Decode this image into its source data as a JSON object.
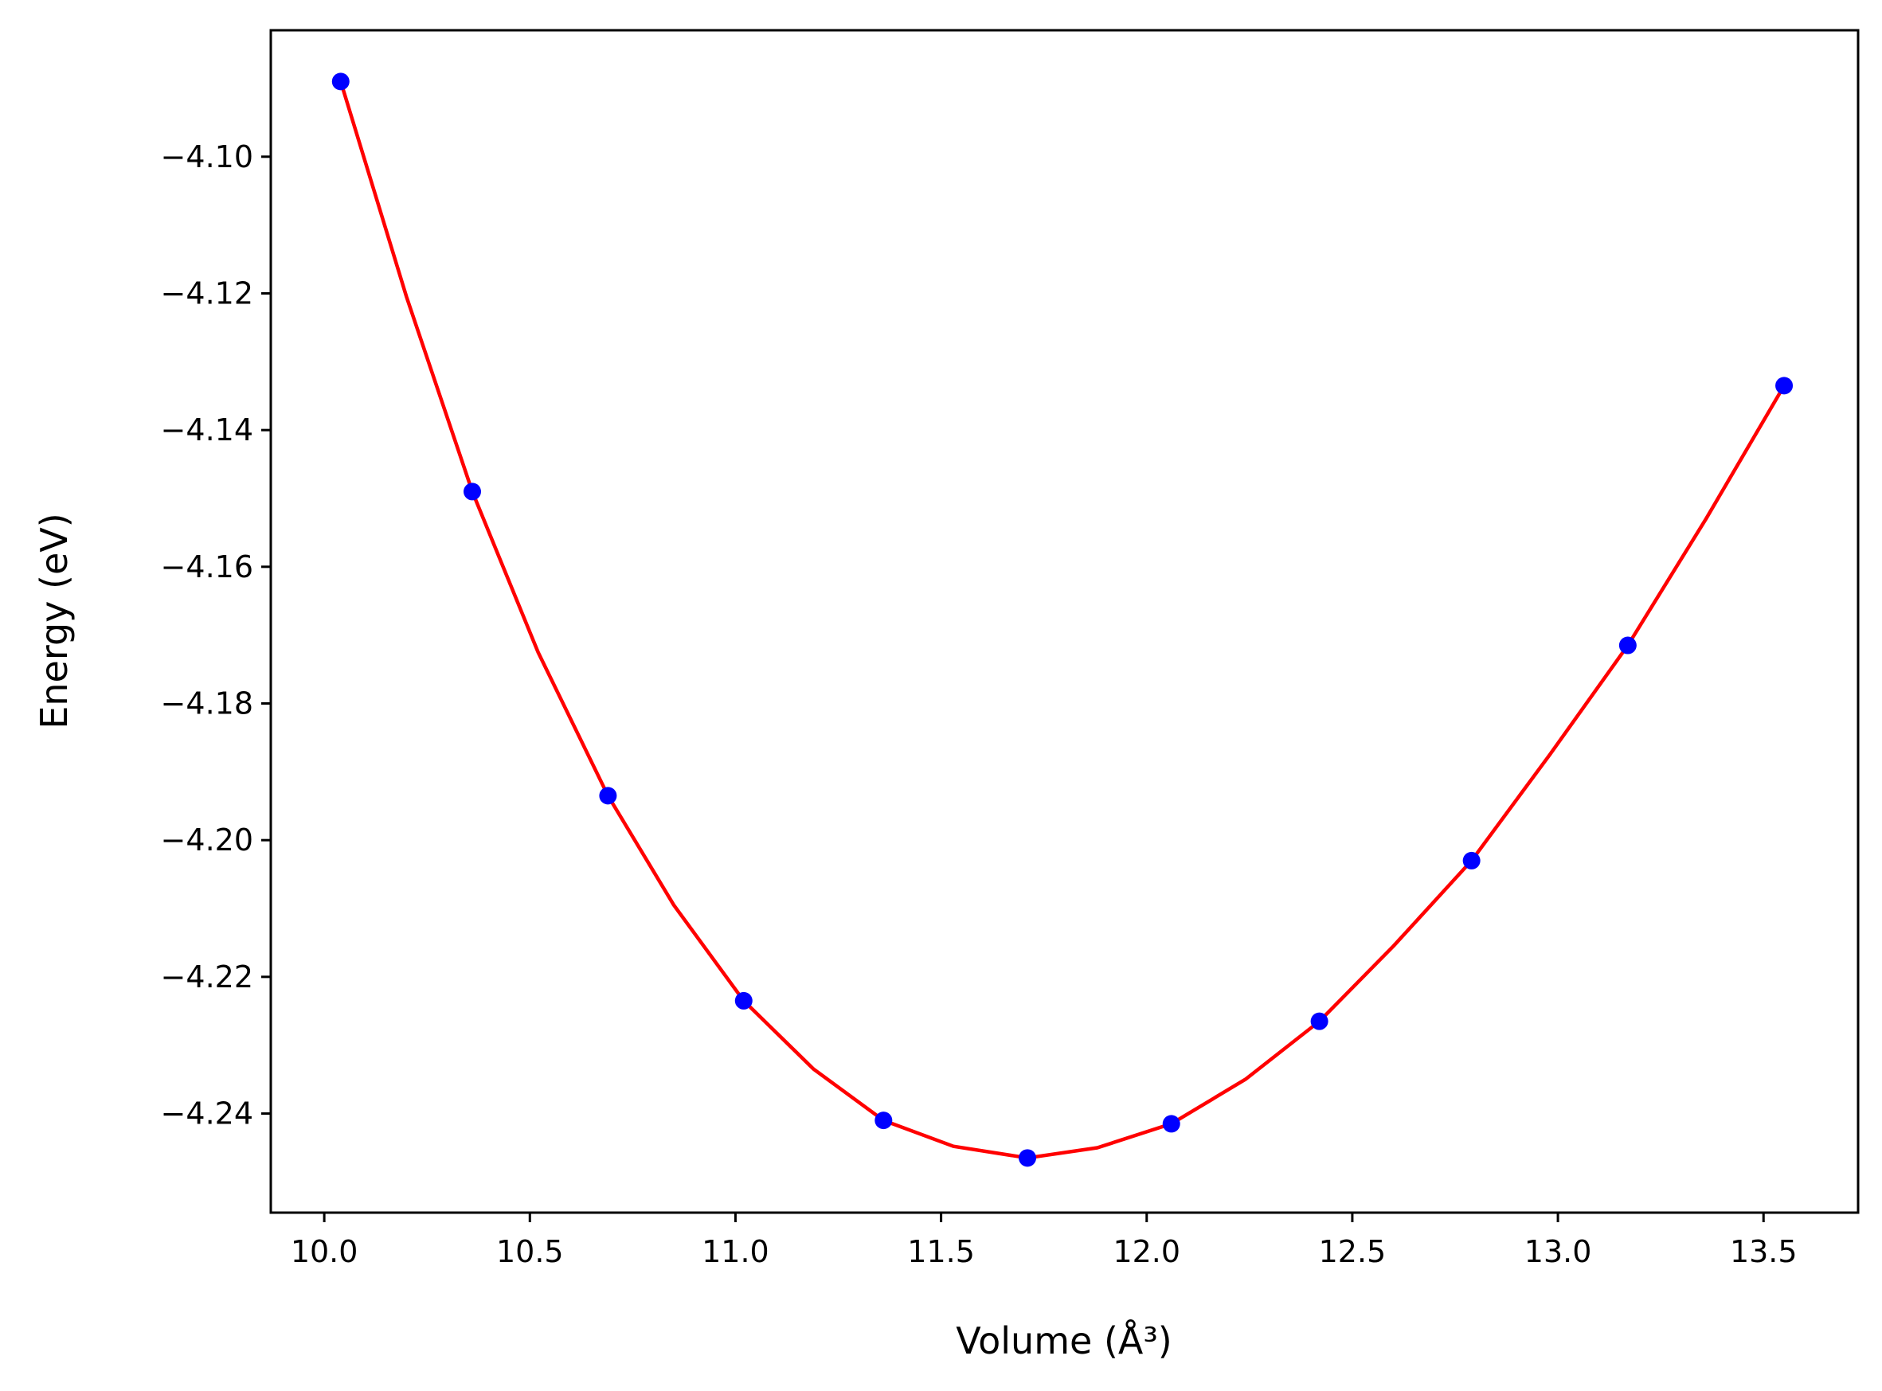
{
  "chart_data": {
    "type": "line",
    "title": "",
    "xlabel": "Volume (Å³)",
    "ylabel": "Energy (eV)",
    "xlim": [
      9.87,
      13.73
    ],
    "ylim": [
      -4.2545,
      -4.0815
    ],
    "x_ticks": [
      10.0,
      10.5,
      11.0,
      11.5,
      12.0,
      12.5,
      13.0,
      13.5
    ],
    "x_tick_labels": [
      "10.0",
      "10.5",
      "11.0",
      "11.5",
      "12.0",
      "12.5",
      "13.0",
      "13.5"
    ],
    "y_ticks": [
      -4.24,
      -4.22,
      -4.2,
      -4.18,
      -4.16,
      -4.14,
      -4.12,
      -4.1
    ],
    "y_tick_labels": [
      "−4.24",
      "−4.22",
      "−4.20",
      "−4.18",
      "−4.16",
      "−4.14",
      "−4.12",
      "−4.10"
    ],
    "grid": false,
    "legend": false,
    "series": [
      {
        "kind": "points",
        "color": "#0000ff",
        "x": [
          10.04,
          10.36,
          10.69,
          11.02,
          11.36,
          11.71,
          12.06,
          12.42,
          12.79,
          13.17,
          13.55
        ],
        "y": [
          -4.089,
          -4.149,
          -4.1935,
          -4.2235,
          -4.241,
          -4.2465,
          -4.2415,
          -4.2265,
          -4.203,
          -4.1715,
          -4.1335
        ]
      },
      {
        "kind": "fit",
        "color": "#ff0000",
        "x": [
          10.04,
          10.2,
          10.36,
          10.52,
          10.69,
          10.85,
          11.02,
          11.19,
          11.36,
          11.53,
          11.71,
          11.88,
          12.06,
          12.24,
          12.42,
          12.6,
          12.79,
          12.98,
          13.17,
          13.36,
          13.55
        ],
        "y": [
          -4.089,
          -4.1205,
          -4.149,
          -4.1725,
          -4.1935,
          -4.2095,
          -4.2235,
          -4.2335,
          -4.241,
          -4.2448,
          -4.2465,
          -4.245,
          -4.2415,
          -4.235,
          -4.2265,
          -4.2155,
          -4.203,
          -4.1875,
          -4.1715,
          -4.153,
          -4.1335
        ]
      }
    ]
  }
}
